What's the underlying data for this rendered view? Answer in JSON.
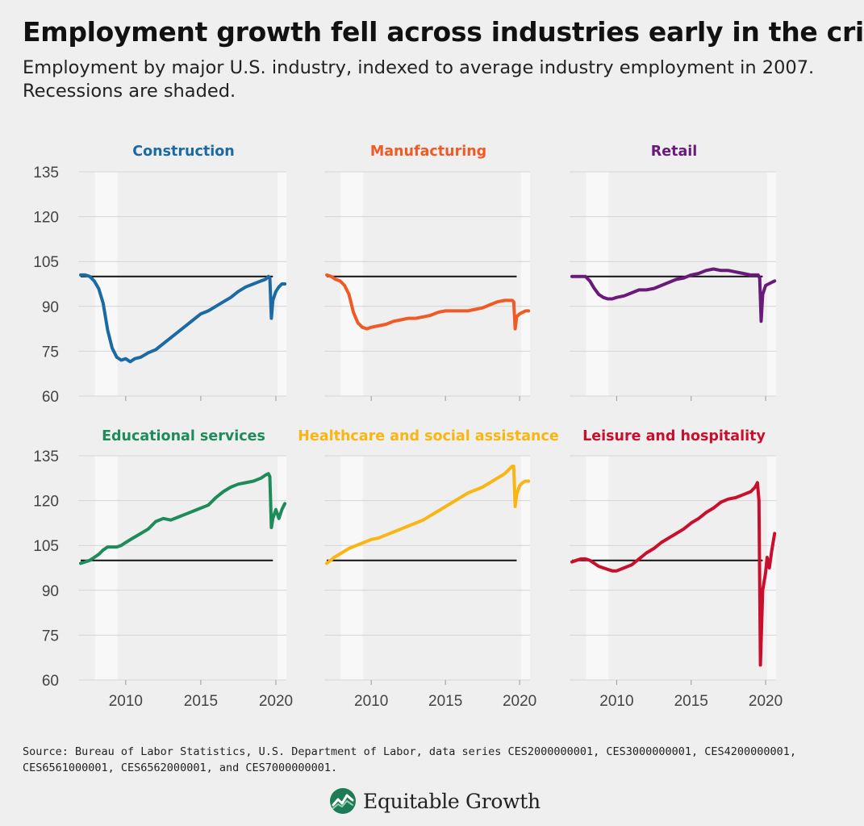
{
  "title": "Employment growth fell across industries early in the crisis",
  "subtitle": "Employment by major U.S. industry, indexed to average industry employment in 2007. Recessions are shaded.",
  "source": "Source: Bureau of Labor Statistics, U.S. Department of Labor, data series CES2000000001, CES3000000001, CES4200000001, CES6561000001, CES6562000001, and CES7000000001.",
  "logo_text": "Equitable Growth",
  "chart_data": {
    "type": "line",
    "y_ticks": [
      135,
      120,
      105,
      90,
      75,
      60
    ],
    "x_ticks": [
      2010,
      2015,
      2020
    ],
    "ylim": [
      60,
      135
    ],
    "xlim": [
      2007,
      2020.7
    ],
    "baseline": 100,
    "baseline_end": 2019.8,
    "recessions": [
      [
        2007.95,
        2009.45
      ],
      [
        2020.1,
        2020.7
      ]
    ],
    "grid": true,
    "panels": [
      {
        "name": "Construction",
        "color": "#1c6aa4",
        "x": [
          2007.0,
          2007.3,
          2007.6,
          2007.9,
          2008.2,
          2008.5,
          2008.8,
          2009.1,
          2009.4,
          2009.7,
          2010.0,
          2010.3,
          2010.6,
          2011.0,
          2011.5,
          2012.0,
          2012.5,
          2013.0,
          2013.5,
          2014.0,
          2014.5,
          2015.0,
          2015.5,
          2016.0,
          2016.5,
          2017.0,
          2017.5,
          2018.0,
          2018.5,
          2019.0,
          2019.3,
          2019.5,
          2019.6,
          2019.7,
          2019.8,
          2020.0,
          2020.2,
          2020.4,
          2020.6
        ],
        "y": [
          100.5,
          100.5,
          100,
          98.5,
          96,
          91,
          82,
          76,
          73,
          72,
          72.5,
          71.5,
          72.5,
          73,
          74.5,
          75.5,
          77.5,
          79.5,
          81.5,
          83.5,
          85.5,
          87.5,
          88.5,
          90,
          91.5,
          93,
          95,
          96.5,
          97.5,
          98.5,
          99,
          100,
          99.5,
          86,
          92,
          95,
          96.5,
          97.5,
          97.5
        ]
      },
      {
        "name": "Manufacturing",
        "color": "#ef5a25",
        "x": [
          2007.0,
          2007.3,
          2007.6,
          2007.9,
          2008.2,
          2008.5,
          2008.8,
          2009.1,
          2009.4,
          2009.7,
          2010.0,
          2010.5,
          2011.0,
          2011.5,
          2012.0,
          2012.5,
          2013.0,
          2013.5,
          2014.0,
          2014.5,
          2015.0,
          2015.5,
          2016.0,
          2016.5,
          2017.0,
          2017.5,
          2018.0,
          2018.5,
          2019.0,
          2019.3,
          2019.5,
          2019.6,
          2019.7,
          2019.8,
          2020.0,
          2020.2,
          2020.4,
          2020.6
        ],
        "y": [
          100.5,
          100,
          99,
          98.5,
          97,
          94,
          88,
          84.5,
          83,
          82.5,
          83,
          83.5,
          84,
          85,
          85.5,
          86,
          86,
          86.5,
          87,
          88,
          88.5,
          88.5,
          88.5,
          88.5,
          89,
          89.5,
          90.5,
          91.5,
          92,
          92,
          92,
          91.5,
          82.5,
          86.5,
          87.5,
          88,
          88.5,
          88.5
        ]
      },
      {
        "name": "Retail",
        "color": "#6a1a7a",
        "x": [
          2007.0,
          2007.3,
          2007.6,
          2007.9,
          2008.2,
          2008.5,
          2008.8,
          2009.1,
          2009.4,
          2009.7,
          2010.0,
          2010.5,
          2011.0,
          2011.5,
          2012.0,
          2012.5,
          2013.0,
          2013.5,
          2014.0,
          2014.5,
          2015.0,
          2015.5,
          2016.0,
          2016.5,
          2017.0,
          2017.5,
          2018.0,
          2018.5,
          2019.0,
          2019.3,
          2019.5,
          2019.6,
          2019.7,
          2019.8,
          2020.0,
          2020.2,
          2020.4,
          2020.6
        ],
        "y": [
          100,
          100,
          100,
          100,
          98.5,
          96,
          94,
          93,
          92.5,
          92.5,
          93,
          93.5,
          94.5,
          95.5,
          95.5,
          96,
          97,
          98,
          99,
          99.5,
          100.5,
          101,
          102,
          102.5,
          102,
          102,
          101.5,
          101,
          100.5,
          100.5,
          100.5,
          99.5,
          85,
          94,
          97,
          97.5,
          98,
          98.5
        ]
      },
      {
        "name": "Educational services",
        "color": "#1e8c5a",
        "x": [
          2007.0,
          2007.3,
          2007.6,
          2007.9,
          2008.2,
          2008.5,
          2008.8,
          2009.1,
          2009.4,
          2009.7,
          2010.0,
          2010.5,
          2011.0,
          2011.5,
          2012.0,
          2012.5,
          2013.0,
          2013.5,
          2014.0,
          2014.5,
          2015.0,
          2015.5,
          2016.0,
          2016.5,
          2017.0,
          2017.5,
          2018.0,
          2018.5,
          2019.0,
          2019.3,
          2019.5,
          2019.6,
          2019.7,
          2019.8,
          2020.0,
          2020.2,
          2020.4,
          2020.6
        ],
        "y": [
          99,
          99.5,
          100,
          101,
          102,
          103.5,
          104.5,
          104.5,
          104.5,
          105,
          106,
          107.5,
          109,
          110.5,
          113,
          114,
          113.5,
          114.5,
          115.5,
          116.5,
          117.5,
          118.5,
          121,
          123,
          124.5,
          125.5,
          126,
          126.5,
          127.5,
          128.5,
          129,
          128,
          111,
          114,
          117,
          114,
          117,
          119
        ]
      },
      {
        "name": "Healthcare and social assistance",
        "color": "#f9b612",
        "x": [
          2007.0,
          2007.5,
          2008.0,
          2008.5,
          2009.0,
          2009.5,
          2010.0,
          2010.5,
          2011.0,
          2011.5,
          2012.0,
          2012.5,
          2013.0,
          2013.5,
          2014.0,
          2014.5,
          2015.0,
          2015.5,
          2016.0,
          2016.5,
          2017.0,
          2017.5,
          2018.0,
          2018.5,
          2019.0,
          2019.3,
          2019.5,
          2019.6,
          2019.7,
          2019.8,
          2020.0,
          2020.2,
          2020.4,
          2020.6
        ],
        "y": [
          99,
          101,
          102.5,
          104,
          105,
          106,
          107,
          107.5,
          108.5,
          109.5,
          110.5,
          111.5,
          112.5,
          113.5,
          115,
          116.5,
          118,
          119.5,
          121,
          122.5,
          123.5,
          124.5,
          126,
          127.5,
          129,
          130.5,
          131.5,
          131.5,
          118,
          122,
          125,
          126,
          126.5,
          126.5
        ]
      },
      {
        "name": "Leisure and hospitality",
        "color": "#c8102e",
        "x": [
          2007.0,
          2007.3,
          2007.6,
          2007.9,
          2008.2,
          2008.5,
          2008.8,
          2009.1,
          2009.4,
          2009.7,
          2010.0,
          2010.5,
          2011.0,
          2011.5,
          2012.0,
          2012.5,
          2013.0,
          2013.5,
          2014.0,
          2014.5,
          2015.0,
          2015.5,
          2016.0,
          2016.5,
          2017.0,
          2017.5,
          2018.0,
          2018.5,
          2019.0,
          2019.3,
          2019.45,
          2019.55,
          2019.65,
          2019.8,
          2020.0,
          2020.1,
          2020.25,
          2020.4,
          2020.6
        ],
        "y": [
          99.5,
          100,
          100.5,
          100.5,
          100,
          99,
          98,
          97.5,
          97,
          96.5,
          96.5,
          97.5,
          98.5,
          100.5,
          102.5,
          104,
          106,
          107.5,
          109,
          110.5,
          112.5,
          114,
          116,
          117.5,
          119.5,
          120.5,
          121,
          122,
          123,
          124.5,
          126,
          120,
          65,
          90,
          96,
          101,
          97.5,
          103,
          109
        ]
      }
    ]
  }
}
